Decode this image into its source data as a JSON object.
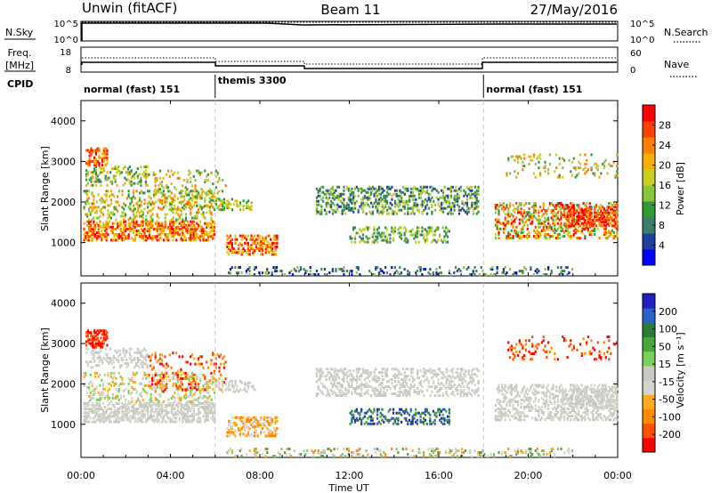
{
  "header": {
    "station": "Unwin (fitACF)",
    "beam": "Beam 11",
    "date": "27/May/2016"
  },
  "colors": {
    "power_scale": [
      "#0000ff",
      "#2040a0",
      "#3b7f6a",
      "#2f9a3a",
      "#8bc43a",
      "#c8d020",
      "#f5b000",
      "#ff7f00",
      "#ff4000",
      "#ff0000"
    ],
    "velocity_scale": [
      "#2020c0",
      "#2a62c8",
      "#2d7a3a",
      "#46a83a",
      "#7ccf5a",
      "#c8c8c0",
      "#d4d4cc",
      "#ffaa20",
      "#ff8800",
      "#ff5000",
      "#ff0000"
    ]
  },
  "chart_data": [
    {
      "type": "line",
      "name_label": "N.Sky",
      "right_label": "N.Search",
      "left_ticks": [
        "10^5",
        "10^0"
      ],
      "right_ticks": [
        "10^5",
        "10^0"
      ]
    },
    {
      "type": "line",
      "name_label": "Freq. [MHz]",
      "left_ticks": [
        "18",
        "8"
      ],
      "right_label": "Nave",
      "right_ticks": [
        "60",
        "0"
      ],
      "cpid_label": "CPID",
      "modes": [
        {
          "label": "normal (fast) 151",
          "start": 0,
          "end": 6
        },
        {
          "label": "themis 3300",
          "start": 6,
          "end": 18
        },
        {
          "label": "normal (fast) 151",
          "start": 18,
          "end": 24
        }
      ]
    },
    {
      "type": "heatmap",
      "ylabel": "Slant Range [km]",
      "yticks": [
        1000,
        2000,
        3000,
        4000
      ],
      "ylim": [
        180,
        4500
      ],
      "colorbar_label": "Power [dB]",
      "colorbar_ticks": [
        4,
        8,
        12,
        16,
        20,
        24,
        28
      ]
    },
    {
      "type": "heatmap",
      "ylabel": "Slant Range [km]",
      "yticks": [
        1000,
        2000,
        3000,
        4000
      ],
      "ylim": [
        180,
        4500
      ],
      "colorbar_label": "Velocity [m s⁻¹]",
      "colorbar_ticks": [
        200,
        100,
        50,
        15,
        -15,
        -50,
        -100,
        -200
      ]
    }
  ],
  "xaxis": {
    "ticks": [
      "00:00",
      "04:00",
      "08:00",
      "12:00",
      "16:00",
      "20:00",
      "00:00"
    ],
    "label": "Time UT",
    "xlim": [
      0,
      24
    ]
  }
}
